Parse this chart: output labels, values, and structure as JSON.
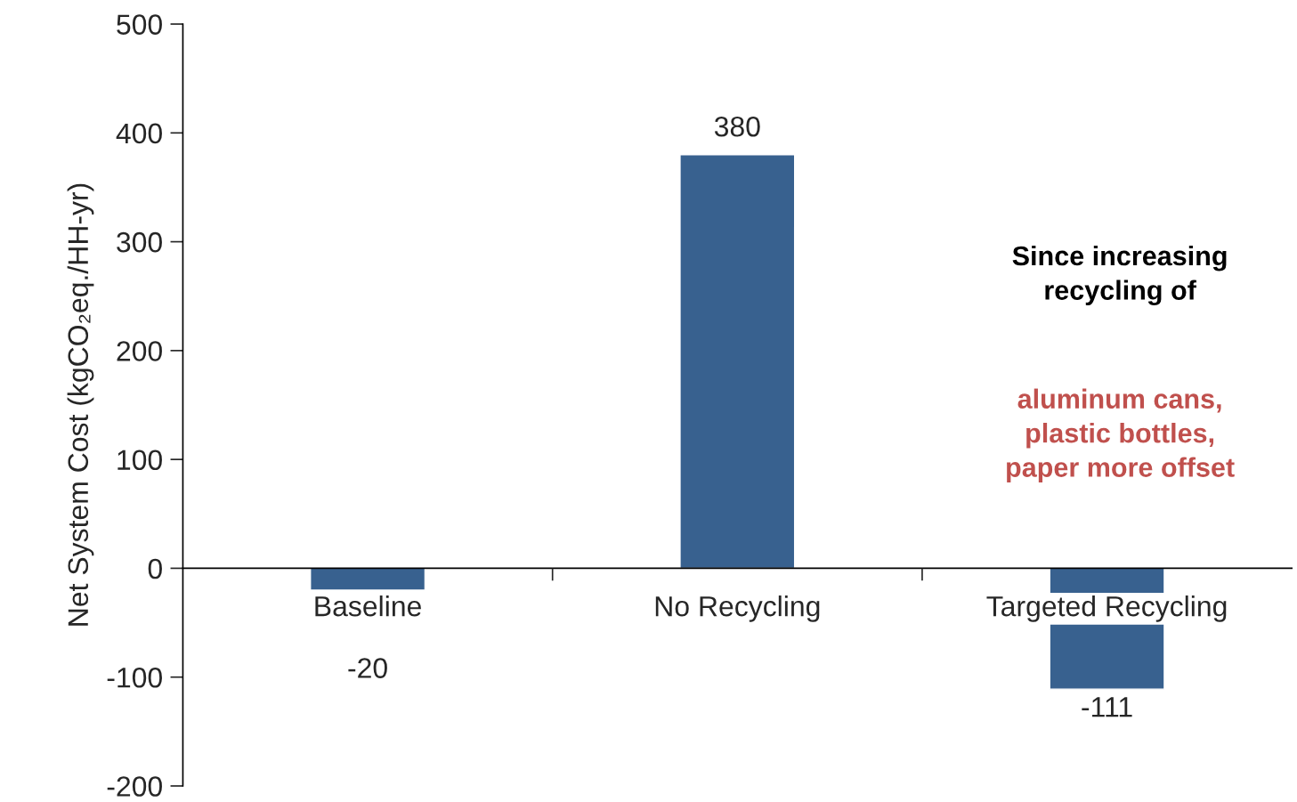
{
  "chart_data": {
    "type": "bar",
    "ylabel": "Net System Cost (kgCO₂eq./HH-yr)",
    "categories": [
      "Baseline",
      "No Recycling",
      "Targeted Recycling"
    ],
    "values": [
      -20,
      380,
      -111
    ],
    "color": "#38618f",
    "ylim": [
      -200,
      500
    ],
    "yticks": [
      -200,
      -100,
      0,
      100,
      200,
      300,
      400,
      500
    ],
    "data_labels": true,
    "grid": false,
    "annotations": [
      "Since increasing\nrecycling of",
      "aluminum cans,\nplastic bottles,\npaper more offset"
    ]
  }
}
